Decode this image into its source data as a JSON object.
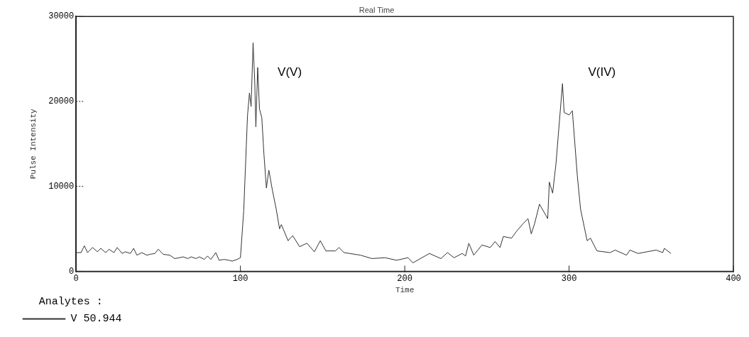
{
  "chart_data": {
    "type": "line",
    "title": "Real Time",
    "xlabel": "Time",
    "ylabel": "Pulse Intensity",
    "legend_title": "Analytes :",
    "legend": "bottom left",
    "grid": false,
    "marker": "none",
    "line_style": "solid",
    "xlim": [
      0,
      400
    ],
    "xticks": [
      0,
      100,
      200,
      300,
      400
    ],
    "ylim": [
      0,
      30000
    ],
    "yticks": [
      0,
      10000,
      20000,
      30000
    ],
    "annotations": [
      "V(V)",
      "V(IV)"
    ],
    "series": [
      {
        "name": "V 50.944",
        "color": "#333333",
        "x": [
          0,
          3,
          5,
          7,
          10,
          13,
          15,
          18,
          20,
          23,
          25,
          28,
          30,
          33,
          35,
          37,
          40,
          43,
          45,
          48,
          50,
          53,
          57,
          60,
          63,
          65,
          68,
          70,
          73,
          75,
          78,
          80,
          82,
          85,
          87,
          90,
          93,
          95,
          98,
          100,
          102,
          104.3,
          105.5,
          106.5,
          107.7,
          108.7,
          109.4,
          110.5,
          111.6,
          113,
          114.3,
          115.8,
          117.3,
          119.5,
          121.7,
          123.8,
          124.9,
          129,
          131.8,
          136,
          140.5,
          145,
          148.6,
          152,
          157.8,
          160,
          163,
          173,
          180,
          188,
          195,
          202,
          205,
          215,
          222,
          226,
          230,
          235,
          237,
          239,
          242,
          247,
          252,
          255,
          258,
          260,
          265,
          268,
          272,
          275,
          277,
          279,
          282,
          287,
          288,
          290,
          292,
          296,
          297,
          300,
          302,
          305,
          307,
          311,
          313,
          317,
          325,
          328,
          335,
          337,
          342,
          353,
          357,
          358,
          362
        ],
        "values": [
          2200,
          2200,
          3000,
          2200,
          2800,
          2300,
          2700,
          2200,
          2600,
          2200,
          2800,
          2100,
          2300,
          2100,
          2700,
          1900,
          2200,
          1900,
          2000,
          2100,
          2600,
          2000,
          1900,
          1500,
          1600,
          1700,
          1500,
          1700,
          1500,
          1700,
          1400,
          1800,
          1400,
          2200,
          1300,
          1400,
          1300,
          1200,
          1400,
          1600,
          7100,
          18300,
          21000,
          19400,
          26900,
          22400,
          17000,
          24000,
          19100,
          18100,
          13800,
          9800,
          11900,
          9500,
          7400,
          5000,
          5500,
          3600,
          4200,
          2900,
          3300,
          2300,
          3600,
          2400,
          2400,
          2800,
          2200,
          1900,
          1500,
          1600,
          1300,
          1600,
          1000,
          2100,
          1500,
          2200,
          1600,
          2100,
          1800,
          3300,
          1900,
          3100,
          2800,
          3500,
          2800,
          4100,
          3900,
          4700,
          5600,
          6200,
          4400,
          5600,
          7900,
          6200,
          10500,
          9200,
          12600,
          22100,
          18700,
          18400,
          18900,
          11300,
          7300,
          3600,
          3900,
          2400,
          2200,
          2500,
          1900,
          2500,
          2100,
          2500,
          2200,
          2700,
          2100
        ]
      }
    ]
  }
}
